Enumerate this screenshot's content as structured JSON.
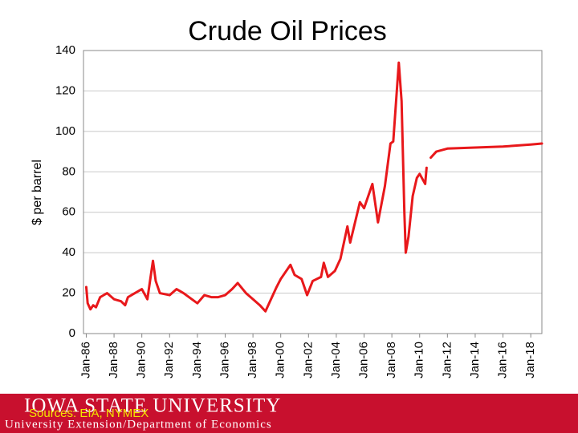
{
  "chart_data": {
    "type": "line",
    "title": "Crude Oil Prices",
    "y_label": "$ per barrel",
    "source": "Sources: EIA, NYMEX",
    "x": [
      1986.0,
      1986.1,
      1986.3,
      1986.5,
      1986.7,
      1987.0,
      1987.5,
      1988.0,
      1988.5,
      1988.8,
      1989.0,
      1989.5,
      1990.0,
      1990.4,
      1990.8,
      1991.0,
      1991.3,
      1992.0,
      1992.5,
      1993.0,
      1993.8,
      1994.0,
      1994.5,
      1995.0,
      1995.5,
      1996.0,
      1996.5,
      1996.9,
      1997.5,
      1998.0,
      1998.5,
      1998.9,
      1999.3,
      1999.7,
      2000.0,
      2000.7,
      2001.0,
      2001.5,
      2001.9,
      2002.3,
      2002.9,
      2003.1,
      2003.4,
      2003.9,
      2004.3,
      2004.8,
      2005.0,
      2005.7,
      2006.0,
      2006.6,
      2007.0,
      2007.5,
      2007.9,
      2008.1,
      2008.5,
      2008.7,
      2008.9,
      2009.0,
      2009.2,
      2009.5,
      2009.8,
      2010.0,
      2010.4,
      2010.5,
      2010.8,
      2011.2,
      2012.0,
      2014.0,
      2016.0,
      2018.0,
      2018.8
    ],
    "series": [
      {
        "color": "#e8181b",
        "values": [
          23,
          15,
          12,
          14,
          13,
          18,
          20,
          17,
          16,
          14,
          18,
          20,
          22,
          17,
          36,
          26,
          20,
          19,
          22,
          20,
          16,
          15,
          19,
          18,
          18,
          19,
          22,
          25,
          20,
          17,
          14,
          11,
          17,
          23,
          27,
          34,
          29,
          27,
          19,
          26,
          28,
          35,
          28,
          31,
          37,
          53,
          45,
          65,
          62,
          74,
          55,
          73,
          94,
          95,
          134,
          115,
          60,
          40,
          48,
          68,
          77,
          79,
          74,
          82,
          null,
          null,
          null,
          null,
          null,
          null,
          null
        ]
      },
      {
        "color": "#e8181b",
        "values": [
          null,
          null,
          null,
          null,
          null,
          null,
          null,
          null,
          null,
          null,
          null,
          null,
          null,
          null,
          null,
          null,
          null,
          null,
          null,
          null,
          null,
          null,
          null,
          null,
          null,
          null,
          null,
          null,
          null,
          null,
          null,
          null,
          null,
          null,
          null,
          null,
          null,
          null,
          null,
          null,
          null,
          null,
          null,
          null,
          null,
          null,
          null,
          null,
          null,
          null,
          null,
          null,
          null,
          null,
          null,
          null,
          null,
          null,
          null,
          null,
          null,
          null,
          null,
          null,
          87,
          90,
          91.5,
          92,
          92.5,
          93.5,
          94
        ]
      }
    ],
    "xlim": [
      1985.8,
      2018.8
    ],
    "xticks": [
      {
        "value": 1986,
        "label": "Jan-86"
      },
      {
        "value": 1988,
        "label": "Jan-88"
      },
      {
        "value": 1990,
        "label": "Jan-90"
      },
      {
        "value": 1992,
        "label": "Jan-92"
      },
      {
        "value": 1994,
        "label": "Jan-94"
      },
      {
        "value": 1996,
        "label": "Jan-96"
      },
      {
        "value": 1998,
        "label": "Jan-98"
      },
      {
        "value": 2000,
        "label": "Jan-00"
      },
      {
        "value": 2002,
        "label": "Jan-02"
      },
      {
        "value": 2004,
        "label": "Jan-04"
      },
      {
        "value": 2006,
        "label": "Jan-06"
      },
      {
        "value": 2008,
        "label": "Jan-08"
      },
      {
        "value": 2010,
        "label": "Jan-10"
      },
      {
        "value": 2012,
        "label": "Jan-12"
      },
      {
        "value": 2014,
        "label": "Jan-14"
      },
      {
        "value": 2016,
        "label": "Jan-16"
      },
      {
        "value": 2018,
        "label": "Jan-18"
      }
    ],
    "ylim": [
      0,
      140
    ],
    "yticks": [
      0,
      20,
      40,
      60,
      80,
      100,
      120,
      140
    ],
    "grid": true
  },
  "footer": {
    "university": "IOWA STATE UNIVERSITY",
    "department": "University Extension/Department of Economics"
  }
}
